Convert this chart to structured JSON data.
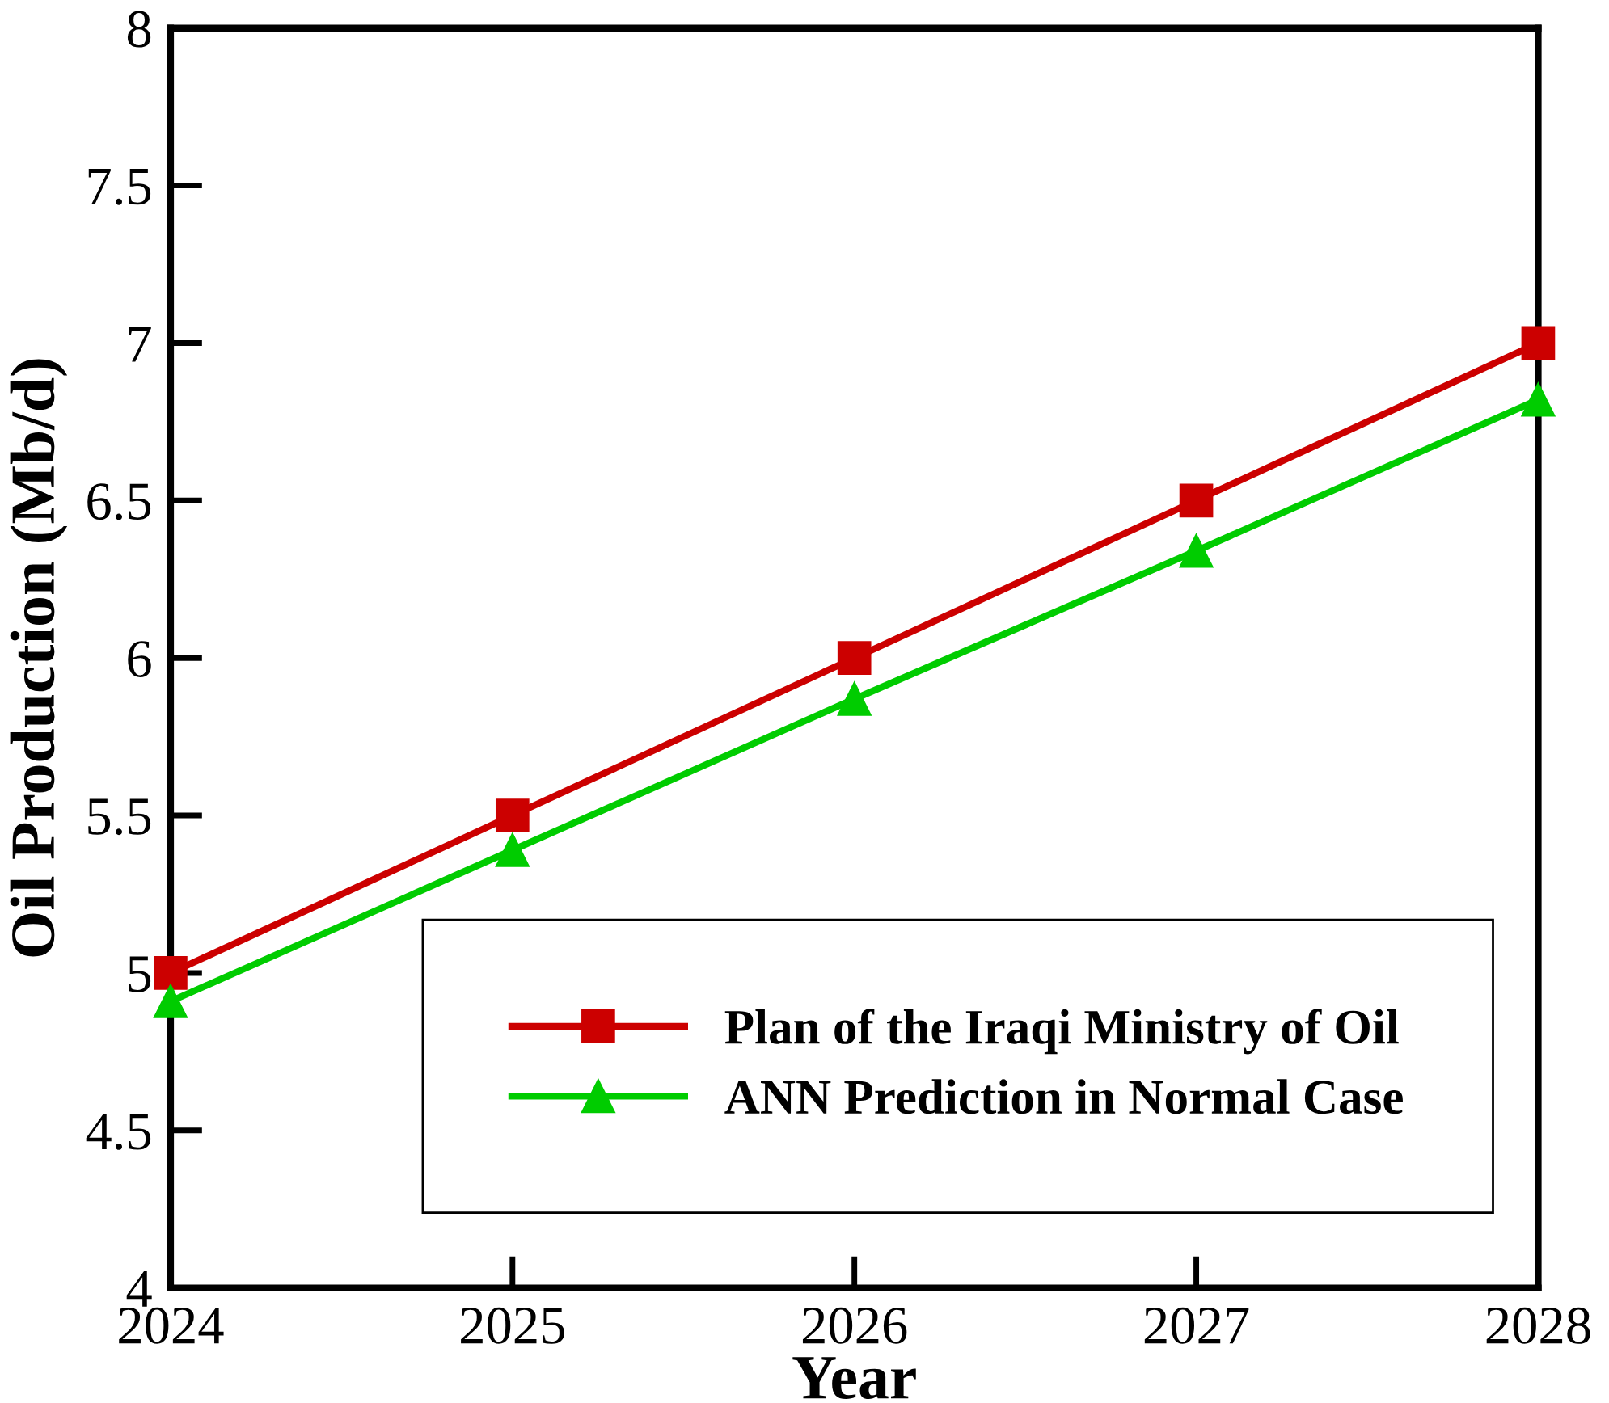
{
  "chart_data": {
    "type": "line",
    "xlabel": "Year",
    "ylabel": "Oil Production (Mb/d)",
    "x": [
      2024,
      2025,
      2026,
      2027,
      2028
    ],
    "series": [
      {
        "name": "Plan of the Iraqi Ministry of Oil",
        "color": "#cc0000",
        "marker": "square",
        "values": [
          5.0,
          5.5,
          6.0,
          6.5,
          7.0
        ]
      },
      {
        "name": "ANN Prediction in Normal Case",
        "color": "#00cc00",
        "marker": "triangle",
        "values": [
          4.91,
          5.39,
          5.87,
          6.34,
          6.82
        ]
      }
    ],
    "xlim": [
      2024,
      2028
    ],
    "xticks": [
      2024,
      2025,
      2026,
      2027,
      2028
    ],
    "ylim": [
      4,
      8
    ],
    "yticks": [
      4,
      {
        "value": 4.5,
        "label": "4.5"
      },
      5,
      {
        "value": 5.5,
        "label": "5.5"
      },
      6,
      {
        "value": 6.5,
        "label": "6.5"
      },
      7,
      {
        "value": 7.5,
        "label": "7.5"
      },
      8
    ],
    "grid": false,
    "legend": "bottom right",
    "line_style": "solid"
  }
}
